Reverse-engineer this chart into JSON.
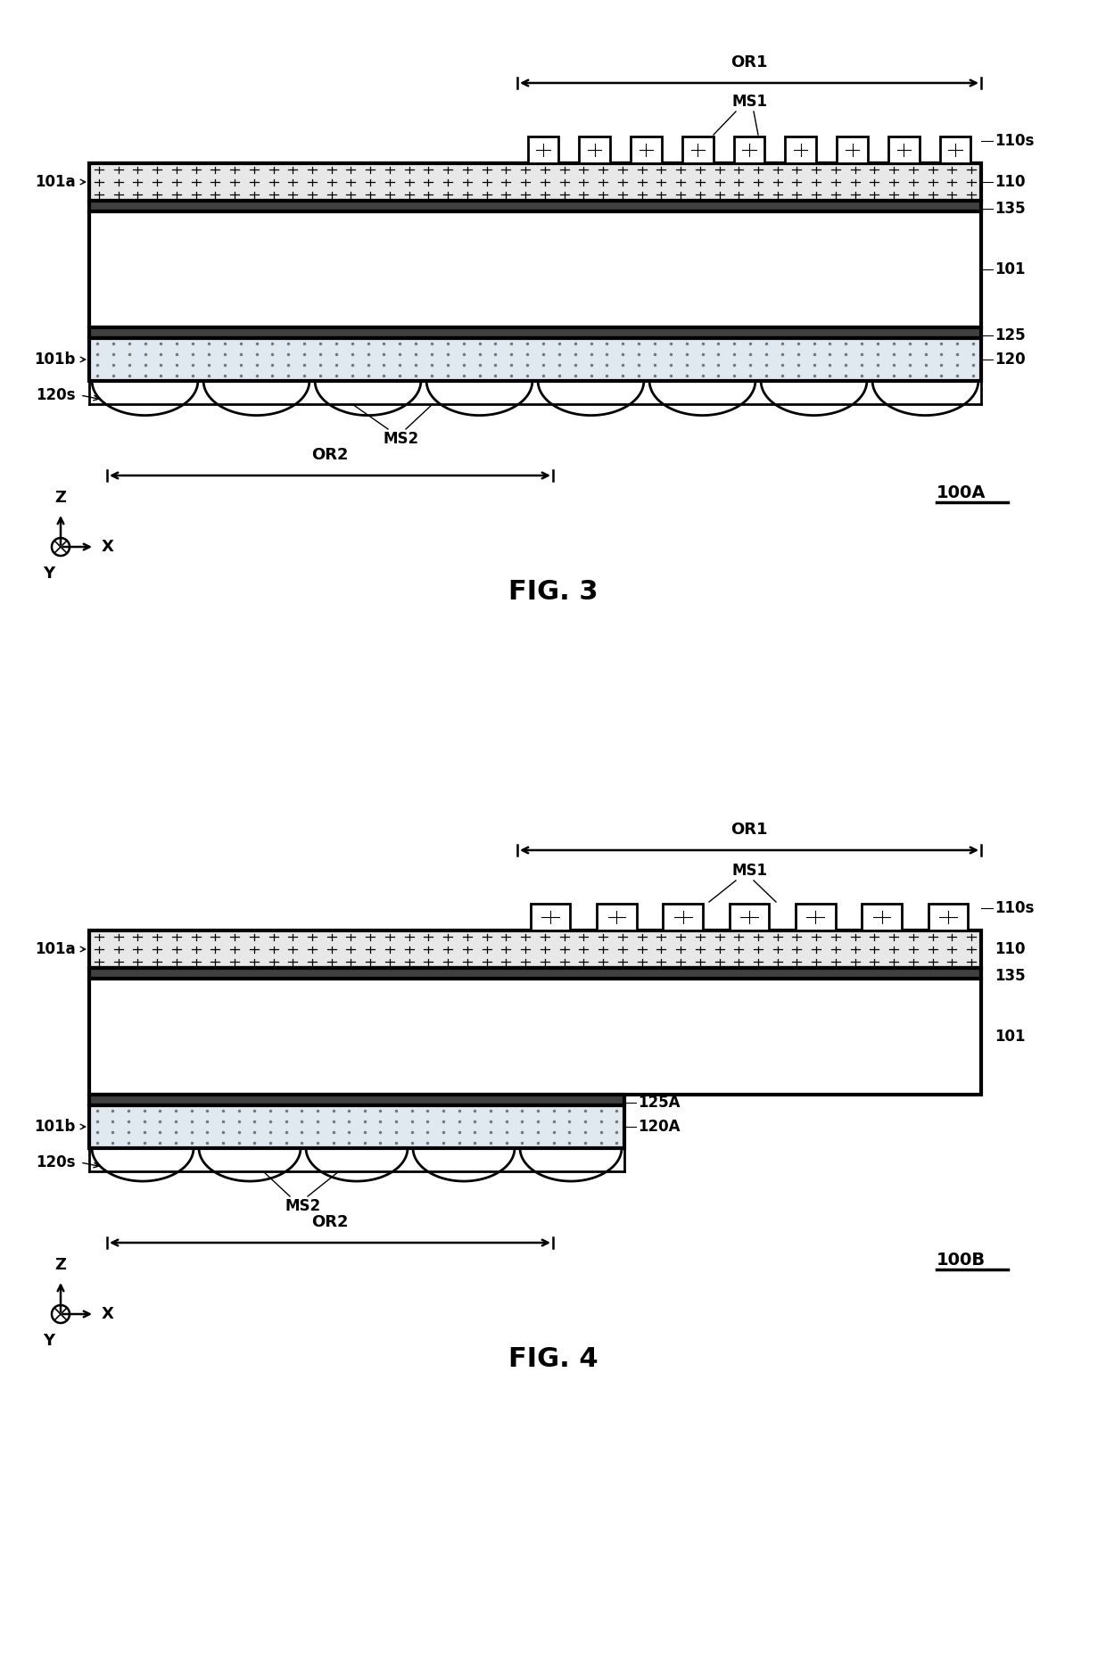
{
  "fig_width": 12.4,
  "fig_height": 18.63,
  "bg_color": "#ffffff",
  "fig3": {
    "title": "FIG. 3",
    "label": "100A",
    "or1_label": "OR1",
    "or2_label": "OR2",
    "ms1_label": "MS1",
    "ms2_label": "MS2"
  },
  "fig4": {
    "title": "FIG. 4",
    "label": "100B",
    "or1_label": "OR1",
    "or2_label": "OR2",
    "ms1_label": "MS1",
    "ms2_label": "MS2"
  },
  "font_size_labels": 12,
  "font_size_title": 22,
  "font_size_xyz": 13
}
